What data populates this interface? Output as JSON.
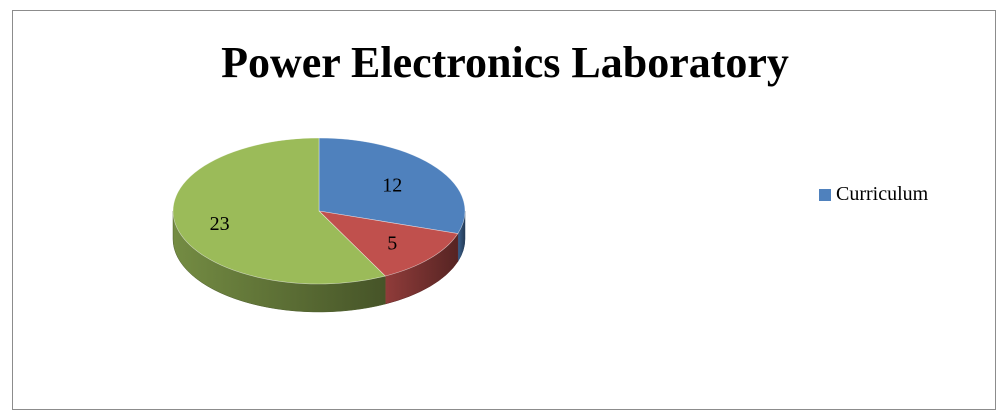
{
  "chart_data": {
    "type": "pie",
    "title": "Power Electronics Laboratory",
    "slices": [
      {
        "value": 12,
        "label": "12",
        "color": "#4f81bd"
      },
      {
        "value": 5,
        "label": "5",
        "color": "#c0504d"
      },
      {
        "value": 23,
        "label": "23",
        "color": "#9bbb59"
      }
    ],
    "legend": {
      "placement": "right",
      "entries": [
        {
          "name": "Curriculum",
          "color": "#4f81bd"
        }
      ]
    },
    "style": "3d"
  }
}
